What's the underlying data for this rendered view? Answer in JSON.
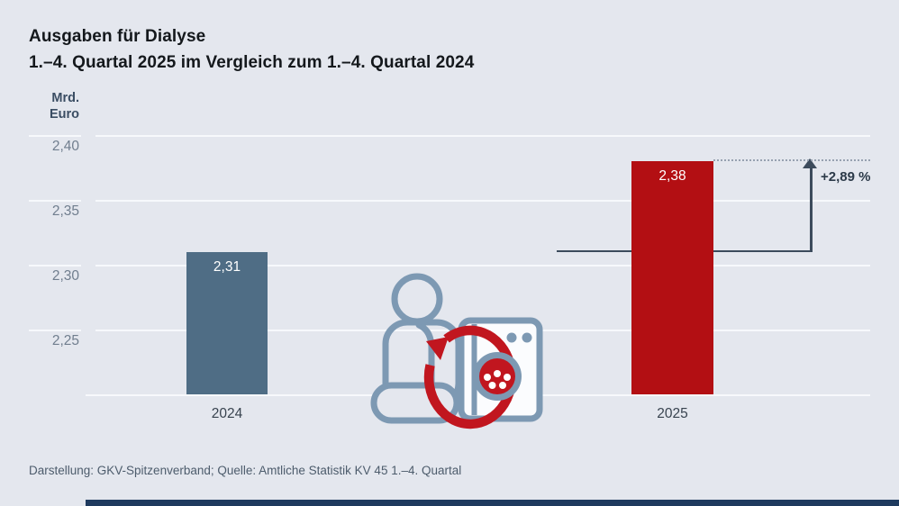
{
  "title": "Ausgaben für Dialyse",
  "subtitle": "1.–4. Quartal 2025 im Vergleich zum 1.–4. Quartal 2024",
  "axis": {
    "unit_line1": "Mrd.",
    "unit_line2": "Euro",
    "tick_labels": [
      "2,40",
      "2,35",
      "2,30",
      "2,25"
    ]
  },
  "chart_data": {
    "type": "bar",
    "title": "Ausgaben für Dialyse",
    "subtitle": "1.–4. Quartal 2025 im Vergleich zum 1.–4. Quartal 2024",
    "ylabel": "Mrd. Euro",
    "categories": [
      "2024",
      "2025"
    ],
    "values": [
      2.31,
      2.38
    ],
    "value_labels": [
      "2,31",
      "2,38"
    ],
    "yticks": [
      2.4,
      2.35,
      2.3,
      2.25
    ],
    "ylim": [
      2.2,
      2.42
    ],
    "grid": true,
    "legend": false,
    "bar_colors": [
      "#4f6d85",
      "#b30f13"
    ],
    "annotation": "+2,89 %"
  },
  "annotation": {
    "change_label": "+2,89 %"
  },
  "footer": {
    "source": "Darstellung: GKV-Spitzenverband; Quelle: Amtliche Statistik KV 45 1.–4. Quartal"
  },
  "icons": {
    "center_icon": "dialysis-patient-and-machine-icon",
    "parts": [
      "patient-icon",
      "dialysis-machine-icon",
      "blood-circulation-arrow-icon"
    ]
  },
  "colors": {
    "background": "#e4e7ee",
    "bar_2024": "#4f6d85",
    "bar_2025": "#b30f13",
    "annotation_line": "#3c4b5c",
    "icon_blue": "#7d99b3",
    "icon_red": "#c1161f",
    "bottom_bar": "#1e3a5e"
  }
}
